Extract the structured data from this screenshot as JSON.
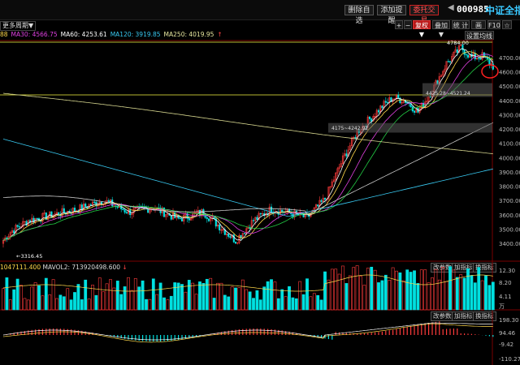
{
  "topbar": {
    "buttons": [
      {
        "label": "删除自选",
        "style": "normal"
      },
      {
        "label": "添加提醒",
        "style": "normal"
      },
      {
        "label": "委托交易",
        "style": "red"
      }
    ],
    "arrow": "◀",
    "code": "000985",
    "name": "中证全指"
  },
  "toolbar": {
    "period": "更多周期▼",
    "buttons": [
      "+",
      "−",
      "复权▼",
      "叠加▼",
      "统 计",
      "画 线",
      "F10",
      "☆"
    ],
    "settings": "设置均线"
  },
  "ma_legend": [
    {
      "text": "88",
      "color": "#ffd84a"
    },
    {
      "text": "MA30: 4566.75",
      "color": "#e040e0"
    },
    {
      "text": "MA60: 4253.61",
      "color": "#ffffff"
    },
    {
      "text": "MA120: 3919.85",
      "color": "#38c8f0"
    },
    {
      "text": "MA250: 4019.95",
      "color": "#e8e8a0"
    },
    {
      "text": "↑",
      "color": "#ff4444"
    }
  ],
  "price_axis": [
    "4700.00",
    "4600.00",
    "4500.00",
    "4400.00",
    "4300.00",
    "4200.00",
    "4100.00",
    "4000.00",
    "3900.00",
    "3800.00",
    "3700.00",
    "3600.00",
    "3500.00",
    "3400.00"
  ],
  "annotations": {
    "high": "4784.00",
    "low": "3316.45",
    "box1": "4425.28~4521.24",
    "box2": "4175~4242.92"
  },
  "volume": {
    "label1": "1047111.400",
    "label2": "MAVOL2: 713920498.600",
    "arrow": "↓",
    "axis": [
      "12.30",
      "8.20",
      "4.11",
      "万"
    ],
    "buttons": [
      "改参数",
      "加指标",
      "换指标"
    ]
  },
  "macd": {
    "axis": [
      "198.30",
      "94.46",
      "-9.42",
      "-110.27"
    ],
    "buttons": [
      "改参数",
      "加指标",
      "换指标"
    ]
  },
  "colors": {
    "up": "#ff3b3b",
    "down": "#00e0e0",
    "ma5": "#ffffff",
    "ma10": "#ffd84a",
    "ma20": "#e040e0",
    "ma30": "#22cc44",
    "ma60": "#ffffff",
    "ma120": "#38c8f0",
    "ma250": "#d8d890"
  }
}
